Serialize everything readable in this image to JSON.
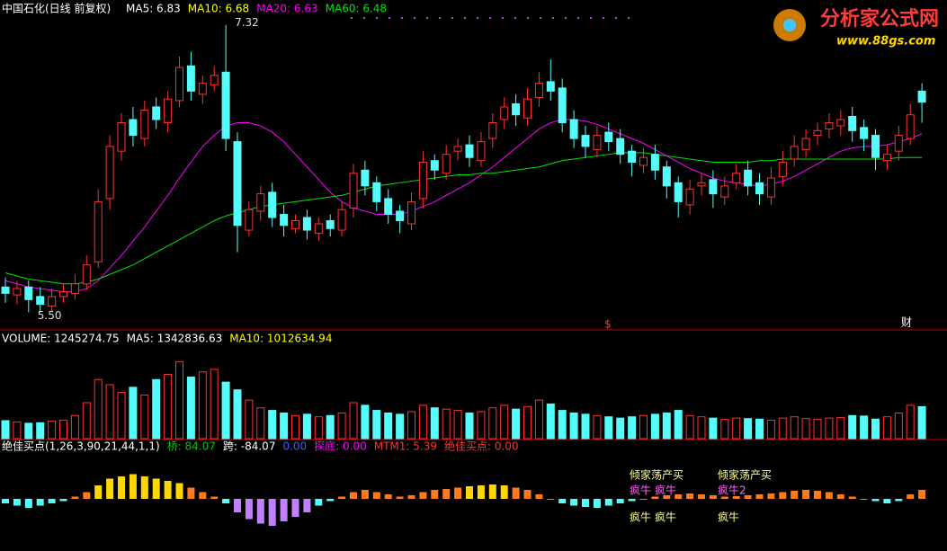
{
  "chart_data": {
    "type": "candlestick",
    "title": "中国石化(日线 前复权)",
    "ma_labels": [
      {
        "text": "MA5: 6.83",
        "color": "#ffffff"
      },
      {
        "text": "MA10: 6.68",
        "color": "#ffff00"
      },
      {
        "text": "MA20: 6.63",
        "color": "#ff00ff"
      },
      {
        "text": "MA60: 6.48",
        "color": "#00e600"
      }
    ],
    "extreme_labels": {
      "high": "7.32",
      "low": "5.50"
    },
    "markers": [
      "$",
      "财"
    ],
    "logo": {
      "title": "分析家公式网",
      "url": "www.88gs.com"
    },
    "ylim": [
      5.4,
      7.42
    ],
    "up_color": "#ff3232",
    "down_color": "#54fcfc",
    "open": [
      5.66,
      5.61,
      5.66,
      5.6,
      5.54,
      5.6,
      5.62,
      5.68,
      5.82,
      6.22,
      6.52,
      6.72,
      6.6,
      6.8,
      6.7,
      6.84,
      7.06,
      6.88,
      6.94,
      7.02,
      6.58,
      6.02,
      6.14,
      6.26,
      6.12,
      6.03,
      6.1,
      6.0,
      6.08,
      6.02,
      6.16,
      6.4,
      6.32,
      6.22,
      6.14,
      6.06,
      6.22,
      6.46,
      6.38,
      6.52,
      6.56,
      6.46,
      6.6,
      6.72,
      6.82,
      6.73,
      6.86,
      6.96,
      6.92,
      6.72,
      6.62,
      6.53,
      6.64,
      6.6,
      6.52,
      6.43,
      6.5,
      6.42,
      6.32,
      6.18,
      6.3,
      6.34,
      6.23,
      6.32,
      6.4,
      6.32,
      6.23,
      6.36,
      6.47,
      6.53,
      6.62,
      6.66,
      6.68,
      6.74,
      6.67,
      6.62,
      6.46,
      6.52,
      6.6,
      6.9
    ],
    "high": [
      5.72,
      5.7,
      5.7,
      5.66,
      5.65,
      5.68,
      5.74,
      5.86,
      6.28,
      6.62,
      6.76,
      6.8,
      6.84,
      6.86,
      6.9,
      7.12,
      7.15,
      7.0,
      7.06,
      7.32,
      6.64,
      6.2,
      6.3,
      6.32,
      6.18,
      6.12,
      6.15,
      6.1,
      6.12,
      6.2,
      6.44,
      6.46,
      6.36,
      6.28,
      6.18,
      6.26,
      6.52,
      6.5,
      6.56,
      6.6,
      6.62,
      6.64,
      6.76,
      6.86,
      6.88,
      6.92,
      7.02,
      7.1,
      6.98,
      6.78,
      6.68,
      6.68,
      6.7,
      6.66,
      6.56,
      6.54,
      6.56,
      6.46,
      6.36,
      6.34,
      6.38,
      6.4,
      6.36,
      6.44,
      6.46,
      6.38,
      6.42,
      6.52,
      6.62,
      6.66,
      6.7,
      6.76,
      6.78,
      6.8,
      6.72,
      6.66,
      6.56,
      6.68,
      6.82,
      6.95
    ],
    "low": [
      5.56,
      5.55,
      5.5,
      5.5,
      5.5,
      5.56,
      5.58,
      5.64,
      5.78,
      6.15,
      6.46,
      6.55,
      6.55,
      6.66,
      6.64,
      6.8,
      6.84,
      6.82,
      6.9,
      6.52,
      5.88,
      5.98,
      6.08,
      6.04,
      5.98,
      6.0,
      5.96,
      5.95,
      5.98,
      5.98,
      6.1,
      6.24,
      6.14,
      6.06,
      6.0,
      6.02,
      6.16,
      6.34,
      6.34,
      6.46,
      6.42,
      6.42,
      6.54,
      6.66,
      6.68,
      6.68,
      6.8,
      6.84,
      6.64,
      6.54,
      6.48,
      6.48,
      6.52,
      6.44,
      6.36,
      6.38,
      6.34,
      6.22,
      6.1,
      6.12,
      6.24,
      6.16,
      6.18,
      6.28,
      6.24,
      6.18,
      6.18,
      6.3,
      6.42,
      6.48,
      6.56,
      6.6,
      6.62,
      6.58,
      6.52,
      6.4,
      6.4,
      6.46,
      6.56,
      6.7
    ],
    "close": [
      5.62,
      5.65,
      5.58,
      5.55,
      5.6,
      5.63,
      5.68,
      5.8,
      6.2,
      6.55,
      6.7,
      6.62,
      6.78,
      6.72,
      6.85,
      7.05,
      6.9,
      6.95,
      7.0,
      6.6,
      6.05,
      6.15,
      6.25,
      6.1,
      6.05,
      6.08,
      6.02,
      6.06,
      6.03,
      6.15,
      6.38,
      6.3,
      6.2,
      6.12,
      6.08,
      6.2,
      6.45,
      6.4,
      6.5,
      6.55,
      6.48,
      6.58,
      6.7,
      6.8,
      6.75,
      6.85,
      6.95,
      6.9,
      6.7,
      6.6,
      6.55,
      6.62,
      6.58,
      6.5,
      6.45,
      6.48,
      6.4,
      6.3,
      6.2,
      6.28,
      6.32,
      6.25,
      6.3,
      6.38,
      6.3,
      6.25,
      6.35,
      6.45,
      6.55,
      6.6,
      6.65,
      6.7,
      6.72,
      6.65,
      6.6,
      6.48,
      6.5,
      6.62,
      6.75,
      6.83
    ],
    "lines": [
      {
        "color": "#ff00ff",
        "values": [
          5.7,
          5.68,
          5.66,
          5.65,
          5.64,
          5.63,
          5.63,
          5.65,
          5.7,
          5.78,
          5.86,
          5.95,
          6.04,
          6.14,
          6.24,
          6.35,
          6.45,
          6.55,
          6.62,
          6.68,
          6.7,
          6.7,
          6.68,
          6.64,
          6.58,
          6.5,
          6.42,
          6.34,
          6.26,
          6.2,
          6.16,
          6.14,
          6.12,
          6.12,
          6.12,
          6.14,
          6.17,
          6.2,
          6.24,
          6.28,
          6.32,
          6.37,
          6.42,
          6.48,
          6.54,
          6.6,
          6.66,
          6.7,
          6.72,
          6.72,
          6.71,
          6.69,
          6.66,
          6.63,
          6.6,
          6.57,
          6.53,
          6.49,
          6.45,
          6.41,
          6.38,
          6.35,
          6.33,
          6.32,
          6.31,
          6.3,
          6.31,
          6.33,
          6.36,
          6.4,
          6.44,
          6.48,
          6.52,
          6.54,
          6.55,
          6.55,
          6.56,
          6.58,
          6.6,
          6.63
        ]
      },
      {
        "color": "#00e600",
        "values": [
          5.75,
          5.73,
          5.71,
          5.7,
          5.69,
          5.68,
          5.68,
          5.69,
          5.71,
          5.74,
          5.77,
          5.8,
          5.84,
          5.88,
          5.92,
          5.96,
          6.0,
          6.04,
          6.08,
          6.11,
          6.13,
          6.15,
          6.17,
          6.18,
          6.19,
          6.2,
          6.21,
          6.22,
          6.23,
          6.24,
          6.26,
          6.28,
          6.3,
          6.31,
          6.32,
          6.33,
          6.34,
          6.35,
          6.36,
          6.37,
          6.37,
          6.38,
          6.38,
          6.39,
          6.4,
          6.41,
          6.42,
          6.44,
          6.46,
          6.47,
          6.48,
          6.49,
          6.5,
          6.51,
          6.51,
          6.51,
          6.5,
          6.49,
          6.48,
          6.47,
          6.46,
          6.45,
          6.45,
          6.45,
          6.45,
          6.46,
          6.46,
          6.47,
          6.47,
          6.47,
          6.47,
          6.47,
          6.47,
          6.47,
          6.47,
          6.47,
          6.47,
          6.48,
          6.48,
          6.48
        ]
      }
    ],
    "volume": {
      "labels": [
        {
          "text": "VOLUME: 1245274.75",
          "color": "#ffffff"
        },
        {
          "text": "MA5: 1342836.63",
          "color": "#ffffff"
        },
        {
          "text": "MA10: 1012634.94",
          "color": "#ffff00"
        }
      ],
      "ylim": [
        0,
        3500000
      ],
      "values": [
        700000,
        650000,
        600000,
        620000,
        680000,
        720000,
        900000,
        1400000,
        2300000,
        2100000,
        1800000,
        2000000,
        1700000,
        2300000,
        2500000,
        3000000,
        2400000,
        2600000,
        2700000,
        2200000,
        1900000,
        1500000,
        1200000,
        1100000,
        1000000,
        900000,
        950000,
        850000,
        900000,
        1000000,
        1400000,
        1300000,
        1100000,
        1000000,
        950000,
        1050000,
        1300000,
        1200000,
        1150000,
        1100000,
        1000000,
        1050000,
        1200000,
        1300000,
        1150000,
        1250000,
        1500000,
        1350000,
        1100000,
        1000000,
        950000,
        900000,
        850000,
        800000,
        850000,
        900000,
        950000,
        1000000,
        1100000,
        900000,
        850000,
        800000,
        750000,
        800000,
        780000,
        760000,
        720000,
        800000,
        850000,
        780000,
        750000,
        800000,
        820000,
        900000,
        880000,
        760000,
        850000,
        1000000,
        1300000,
        1245274.75
      ]
    },
    "indicator": {
      "labels": [
        {
          "text": "绝佳买点(1,26,3,90,21,44,1,1)",
          "color": "#ffffff"
        },
        {
          "text": "桥: 84.07",
          "color": "#00c800"
        },
        {
          "text": "跨: -84.07",
          "color": "#ffffff"
        },
        {
          "text": "0.00",
          "color": "#3c5cff"
        },
        {
          "text": "探底: 0.00",
          "color": "#ff00ff"
        },
        {
          "text": "MTM1: 5.39",
          "color": "#ff3232"
        },
        {
          "text": "绝佳买点: 0.00",
          "color": "#ff3232"
        }
      ],
      "ylim": [
        -110,
        110
      ],
      "values": [
        -10,
        -15,
        -20,
        -15,
        -10,
        -5,
        5,
        15,
        30,
        45,
        50,
        55,
        50,
        45,
        40,
        35,
        25,
        15,
        5,
        -10,
        -30,
        -45,
        -55,
        -60,
        -50,
        -40,
        -30,
        -15,
        -5,
        5,
        15,
        20,
        15,
        10,
        5,
        8,
        15,
        20,
        22,
        25,
        28,
        30,
        32,
        30,
        25,
        20,
        10,
        0,
        -10,
        -15,
        -18,
        -20,
        -15,
        -10,
        -5,
        0,
        5,
        8,
        10,
        12,
        10,
        8,
        5,
        6,
        8,
        10,
        12,
        15,
        18,
        20,
        18,
        15,
        10,
        5,
        0,
        -5,
        -10,
        -5,
        10,
        20
      ],
      "annotations": [
        {
          "text": "倾家荡产买",
          "color": "#ffff99"
        },
        {
          "text": "倾家荡产买",
          "color": "#ffff99"
        },
        {
          "text": "疯牛",
          "color": "#ff66ff"
        },
        {
          "text": "疯牛",
          "color": "#ff66ff"
        },
        {
          "text": "疯牛2",
          "color": "#ff66ff"
        },
        {
          "text": "疯牛",
          "color": "#ffff99"
        },
        {
          "text": "疯牛",
          "color": "#ffff99"
        },
        {
          "text": "疯牛",
          "color": "#ffff99"
        }
      ]
    }
  }
}
